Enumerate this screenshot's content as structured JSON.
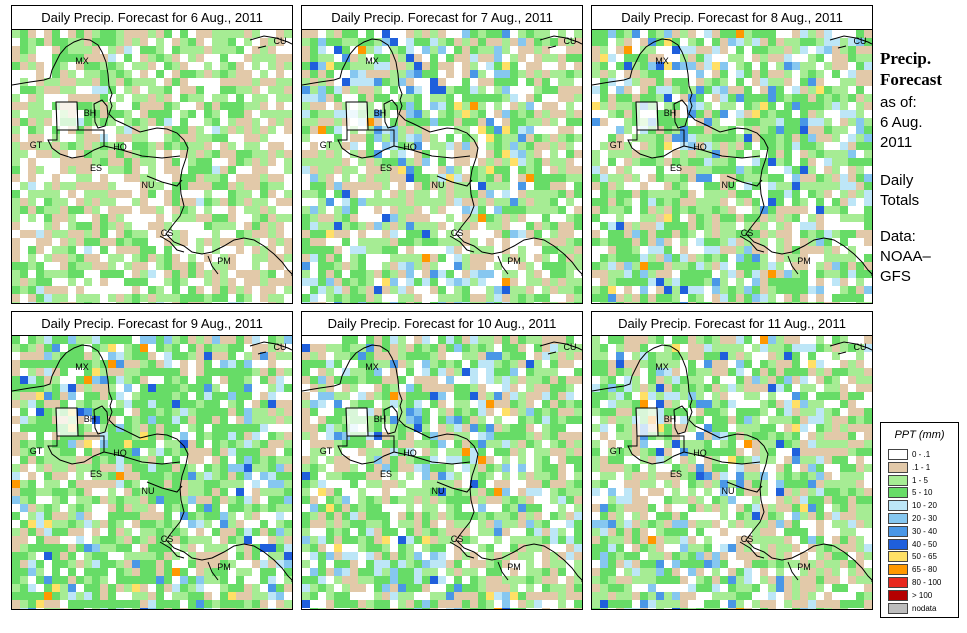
{
  "panels": [
    {
      "title": "Daily Precip. Forecast for  6 Aug., 2011",
      "seed": 11,
      "wet": 1.25
    },
    {
      "title": "Daily Precip. Forecast for  7 Aug., 2011",
      "seed": 27,
      "wet": 1.0
    },
    {
      "title": "Daily Precip. Forecast for  8 Aug., 2011",
      "seed": 43,
      "wet": 0.85
    },
    {
      "title": "Daily Precip. Forecast for  9 Aug., 2011",
      "seed": 59,
      "wet": 0.8
    },
    {
      "title": "Daily Precip. Forecast for  10 Aug., 2011",
      "seed": 71,
      "wet": 0.9
    },
    {
      "title": "Daily Precip. Forecast for  11 Aug., 2011",
      "seed": 83,
      "wet": 0.95
    }
  ],
  "country_labels": [
    "MX",
    "BH",
    "GT",
    "HO",
    "ES",
    "NU",
    "CS",
    "PM",
    "CU"
  ],
  "sidebar": {
    "title_line1": "Precip.",
    "title_line2": "Forecast",
    "asof": "as of:",
    "date_line1": "6 Aug.",
    "date_line2": "2011",
    "daily_line1": "Daily",
    "daily_line2": "Totals",
    "data_line1": "Data:",
    "data_line2": "NOAA–",
    "data_line3": "GFS"
  },
  "legend": {
    "title": "PPT (mm)",
    "items": [
      {
        "label": "0 - .1",
        "color": "#ffffff"
      },
      {
        "label": ".1 - 1",
        "color": "#e2c9a9"
      },
      {
        "label": "1 - 5",
        "color": "#a6ec94"
      },
      {
        "label": "5 - 10",
        "color": "#67dc67"
      },
      {
        "label": "10 - 20",
        "color": "#bde6f7"
      },
      {
        "label": "20 - 30",
        "color": "#86c7f0"
      },
      {
        "label": "30 - 40",
        "color": "#4a97e6"
      },
      {
        "label": "40 - 50",
        "color": "#1f5fdc"
      },
      {
        "label": "50 - 65",
        "color": "#ffe066"
      },
      {
        "label": "65 - 80",
        "color": "#ff9800"
      },
      {
        "label": "80 - 100",
        "color": "#e8281e"
      },
      {
        "label": "> 100",
        "color": "#b40000"
      },
      {
        "label": "nodata",
        "color": "#bdbdbd"
      }
    ]
  }
}
